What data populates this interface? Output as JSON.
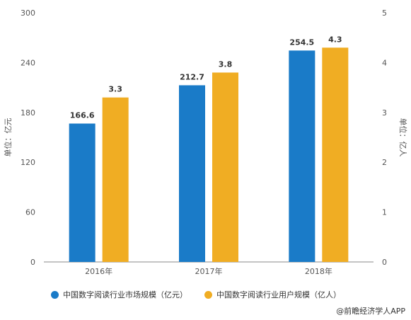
{
  "chart_data": {
    "type": "bar",
    "categories": [
      "2016年",
      "2017年",
      "2018年"
    ],
    "series": [
      {
        "name": "中国数字阅读行业市场规模（亿元）",
        "values": [
          166.6,
          212.7,
          254.5
        ],
        "labels": [
          "166.6",
          "212.7",
          "254.5"
        ],
        "color": "#1a7bc8",
        "axis": "left"
      },
      {
        "name": "中国数字阅读行业用户规模（亿人）",
        "values": [
          3.3,
          3.8,
          4.3
        ],
        "labels": [
          "3.3",
          "3.8",
          "4.3"
        ],
        "color": "#f0ad23",
        "axis": "right"
      }
    ],
    "y_left": {
      "label": "单位：亿元",
      "ylim": [
        0,
        300
      ],
      "ticks": [
        "0",
        "60",
        "120",
        "180",
        "240",
        "300"
      ]
    },
    "y_right": {
      "label": "单位：亿人",
      "ylim": [
        0,
        5
      ],
      "ticks": [
        "0",
        "1",
        "2",
        "3",
        "4",
        "5"
      ]
    },
    "grid": false,
    "legend_position": "bottom"
  },
  "credit": "@前瞻经济学人APP"
}
